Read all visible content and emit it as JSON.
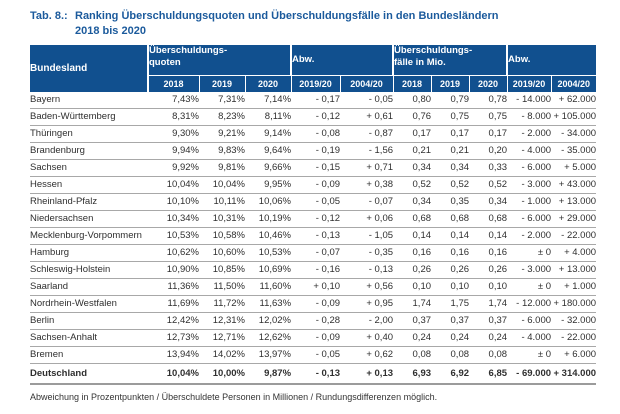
{
  "title": {
    "label": "Tab. 8.:",
    "text_line1": "Ranking Überschuldungsquoten und Überschuldungsfälle in den Bundesländern",
    "text_line2": "2018 bis 2020"
  },
  "colors": {
    "header_bg": "#11508f",
    "title_text": "#1b5a9c"
  },
  "table": {
    "header": {
      "bundesland": "Bundesland",
      "group_quoten": "Überschuldungs-\nquoten",
      "group_abw_quoten": "Abw.",
      "group_faelle": "Überschuldungs-\nfälle in Mio.",
      "group_abw_faelle": "Abw.",
      "years_quoten": [
        "2018",
        "2019",
        "2020"
      ],
      "abw_quoten": [
        "2019/20",
        "2004/20"
      ],
      "years_faelle": [
        "2018",
        "2019",
        "2020"
      ],
      "abw_faelle": [
        "2019/20",
        "2004/20"
      ]
    },
    "rows": [
      {
        "name": "Bayern",
        "values": [
          "7,43%",
          "7,31%",
          "7,14%",
          "- 0,17",
          "- 0,05",
          "0,80",
          "0,79",
          "0,78",
          "- 14.000",
          "+ 62.000"
        ]
      },
      {
        "name": "Baden-Württemberg",
        "values": [
          "8,31%",
          "8,23%",
          "8,11%",
          "- 0,12",
          "+ 0,61",
          "0,76",
          "0,75",
          "0,75",
          "- 8.000",
          "+ 105.000"
        ]
      },
      {
        "name": "Thüringen",
        "values": [
          "9,30%",
          "9,21%",
          "9,14%",
          "- 0,08",
          "- 0,87",
          "0,17",
          "0,17",
          "0,17",
          "- 2.000",
          "- 34.000"
        ]
      },
      {
        "name": "Brandenburg",
        "values": [
          "9,94%",
          "9,83%",
          "9,64%",
          "- 0,19",
          "- 1,56",
          "0,21",
          "0,21",
          "0,20",
          "- 4.000",
          "- 35.000"
        ]
      },
      {
        "name": "Sachsen",
        "values": [
          "9,92%",
          "9,81%",
          "9,66%",
          "- 0,15",
          "+ 0,71",
          "0,34",
          "0,34",
          "0,33",
          "- 6.000",
          "+ 5.000"
        ]
      },
      {
        "name": "Hessen",
        "values": [
          "10,04%",
          "10,04%",
          "9,95%",
          "- 0,09",
          "+ 0,38",
          "0,52",
          "0,52",
          "0,52",
          "- 3.000",
          "+ 43.000"
        ]
      },
      {
        "name": "Rheinland-Pfalz",
        "values": [
          "10,10%",
          "10,11%",
          "10,06%",
          "- 0,05",
          "- 0,07",
          "0,34",
          "0,35",
          "0,34",
          "- 1.000",
          "+ 13.000"
        ]
      },
      {
        "name": "Niedersachsen",
        "values": [
          "10,34%",
          "10,31%",
          "10,19%",
          "- 0,12",
          "+ 0,06",
          "0,68",
          "0,68",
          "0,68",
          "- 6.000",
          "+ 29.000"
        ]
      },
      {
        "name": "Mecklenburg-Vorpommern",
        "values": [
          "10,53%",
          "10,58%",
          "10,46%",
          "- 0,13",
          "- 1,05",
          "0,14",
          "0,14",
          "0,14",
          "- 2.000",
          "- 22.000"
        ]
      },
      {
        "name": "Hamburg",
        "values": [
          "10,62%",
          "10,60%",
          "10,53%",
          "- 0,07",
          "- 0,35",
          "0,16",
          "0,16",
          "0,16",
          "± 0",
          "+ 4.000"
        ]
      },
      {
        "name": "Schleswig-Holstein",
        "values": [
          "10,90%",
          "10,85%",
          "10,69%",
          "- 0,16",
          "- 0,13",
          "0,26",
          "0,26",
          "0,26",
          "- 3.000",
          "+ 13.000"
        ]
      },
      {
        "name": "Saarland",
        "values": [
          "11,36%",
          "11,50%",
          "11,60%",
          "+ 0,10",
          "+ 0,56",
          "0,10",
          "0,10",
          "0,10",
          "± 0",
          "+ 1.000"
        ]
      },
      {
        "name": "Nordrhein-Westfalen",
        "values": [
          "11,69%",
          "11,72%",
          "11,63%",
          "- 0,09",
          "+ 0,95",
          "1,74",
          "1,75",
          "1,74",
          "- 12.000",
          "+ 180.000"
        ]
      },
      {
        "name": "Berlin",
        "values": [
          "12,42%",
          "12,31%",
          "12,02%",
          "- 0,28",
          "- 2,00",
          "0,37",
          "0,37",
          "0,37",
          "- 6.000",
          "- 32.000"
        ]
      },
      {
        "name": "Sachsen-Anhalt",
        "values": [
          "12,73%",
          "12,71%",
          "12,62%",
          "- 0,09",
          "+ 0,40",
          "0,24",
          "0,24",
          "0,24",
          "- 4.000",
          "- 22.000"
        ]
      },
      {
        "name": "Bremen",
        "values": [
          "13,94%",
          "14,02%",
          "13,97%",
          "- 0,05",
          "+ 0,62",
          "0,08",
          "0,08",
          "0,08",
          "± 0",
          "+ 6.000"
        ]
      }
    ],
    "total_row": {
      "name": "Deutschland",
      "values": [
        "10,04%",
        "10,00%",
        "9,87%",
        "- 0,13",
        "+ 0,13",
        "6,93",
        "6,92",
        "6,85",
        "- 69.000",
        "+ 314.000"
      ]
    }
  },
  "footnote": "Abweichung in Prozentpunkten / Überschuldete Personen in Millionen / Rundungsdifferenzen möglich."
}
